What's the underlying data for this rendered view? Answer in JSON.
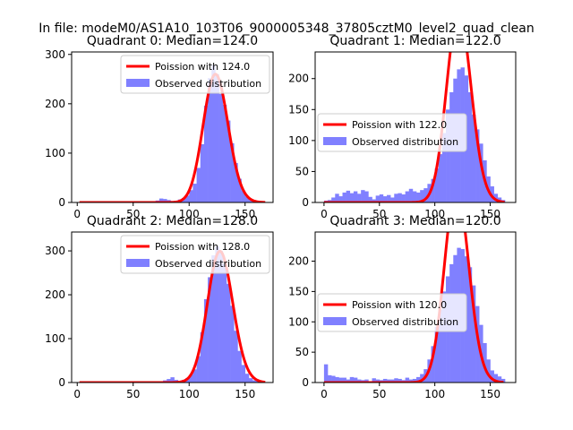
{
  "figure": {
    "title": "In file: modeM0/AS1A10_103T06_9000005348_37805cztM0_level2_quad_clean"
  },
  "colors": {
    "fit_line": "#ff0000",
    "hist_bar": "#8080ff",
    "axis": "#000000",
    "background": "#ffffff"
  },
  "chart_data": [
    {
      "type": "bar",
      "title": "Quadrant 0: Median=124.0",
      "xlim": [
        -5,
        175
      ],
      "ylim": [
        0,
        305
      ],
      "xticks": [
        "0",
        "50",
        "100",
        "150"
      ],
      "xtick_values": [
        0,
        50,
        100,
        150
      ],
      "yticks": [
        "0",
        "100",
        "200",
        "300"
      ],
      "ytick_values": [
        0,
        100,
        200,
        300
      ],
      "legend": {
        "placement": "upper-right",
        "entries": [
          "Poission with 124.0",
          "Observed distribution"
        ]
      },
      "bin_width": 3.33,
      "bins_x": [
        70,
        73.33,
        76.67,
        80,
        83.33,
        86.67,
        90,
        93.33,
        96.67,
        100,
        103.33,
        106.67,
        110,
        113.33,
        116.67,
        120,
        123.33,
        126.67,
        130,
        133.33,
        136.67,
        140,
        143.33,
        146.67,
        150,
        153.33,
        156.67,
        160,
        163.33
      ],
      "bins_count": [
        4,
        8,
        7,
        5,
        3,
        3,
        6,
        9,
        14,
        25,
        38,
        70,
        118,
        196,
        252,
        278,
        260,
        220,
        198,
        166,
        120,
        80,
        48,
        24,
        12,
        6,
        4,
        3,
        2
      ],
      "fit_mu": 124.0,
      "fit_range": [
        2,
        168
      ]
    },
    {
      "type": "bar",
      "title": "Quadrant 1: Median=122.0",
      "xlim": [
        -8,
        173
      ],
      "ylim": [
        0,
        243
      ],
      "xticks": [
        "0",
        "50",
        "100",
        "150"
      ],
      "xtick_values": [
        0,
        50,
        100,
        150
      ],
      "yticks": [
        "0",
        "50",
        "100",
        "150",
        "200"
      ],
      "ytick_values": [
        0,
        50,
        100,
        150,
        200
      ],
      "legend": {
        "placement": "center-left",
        "entries": [
          "Poission with 122.0",
          "Observed distribution"
        ]
      },
      "bin_width": 3.33,
      "bins_x": [
        0,
        3.33,
        6.67,
        10,
        13.33,
        16.67,
        20,
        23.33,
        26.67,
        30,
        33.33,
        36.67,
        40,
        43.33,
        46.67,
        50,
        53.33,
        56.67,
        60,
        63.33,
        66.67,
        70,
        73.33,
        76.67,
        80,
        83.33,
        86.67,
        90,
        93.33,
        96.67,
        100,
        103.33,
        106.67,
        110,
        113.33,
        116.67,
        120,
        123.33,
        126.67,
        130,
        133.33,
        136.67,
        140,
        143.33,
        146.67,
        150,
        153.33,
        156.67,
        160
      ],
      "bins_count": [
        3,
        4,
        8,
        14,
        10,
        16,
        19,
        15,
        18,
        14,
        20,
        18,
        9,
        5,
        11,
        13,
        10,
        12,
        8,
        14,
        15,
        13,
        18,
        22,
        18,
        16,
        20,
        23,
        30,
        38,
        55,
        78,
        112,
        150,
        178,
        200,
        215,
        218,
        205,
        178,
        142,
        118,
        95,
        68,
        42,
        26,
        14,
        8,
        4
      ],
      "fit_mu": 122.0,
      "fit_range": [
        0,
        163
      ]
    },
    {
      "type": "bar",
      "title": "Quadrant 2: Median=128.0",
      "xlim": [
        -5,
        175
      ],
      "ylim": [
        0,
        343
      ],
      "xticks": [
        "0",
        "50",
        "100",
        "150"
      ],
      "xtick_values": [
        0,
        50,
        100,
        150
      ],
      "yticks": [
        "0",
        "100",
        "200",
        "300"
      ],
      "ytick_values": [
        0,
        100,
        200,
        300
      ],
      "legend": {
        "placement": "upper-right",
        "entries": [
          "Poission with 128.0",
          "Observed distribution"
        ]
      },
      "bin_width": 3.33,
      "bins_x": [
        70,
        73.33,
        76.67,
        80,
        83.33,
        86.67,
        90,
        93.33,
        96.67,
        100,
        103.33,
        106.67,
        110,
        113.33,
        116.67,
        120,
        123.33,
        126.67,
        130,
        133.33,
        136.67,
        140,
        143.33,
        146.67,
        150,
        153.33,
        156.67,
        160,
        163.33
      ],
      "bins_count": [
        2,
        3,
        5,
        8,
        12,
        6,
        4,
        6,
        10,
        18,
        30,
        60,
        115,
        190,
        240,
        290,
        310,
        300,
        270,
        225,
        175,
        118,
        72,
        40,
        20,
        10,
        5,
        3,
        2
      ],
      "fit_mu": 128.0,
      "fit_range": [
        2,
        168
      ]
    },
    {
      "type": "bar",
      "title": "Quadrant 3: Median=120.0",
      "xlim": [
        -8,
        173
      ],
      "ylim": [
        0,
        248
      ],
      "xticks": [
        "0",
        "50",
        "100",
        "150"
      ],
      "xtick_values": [
        0,
        50,
        100,
        150
      ],
      "yticks": [
        "0",
        "50",
        "100",
        "150",
        "200"
      ],
      "ytick_values": [
        0,
        50,
        100,
        150,
        200
      ],
      "legend": {
        "placement": "center-left",
        "entries": [
          "Poission with 120.0",
          "Observed distribution"
        ]
      },
      "bin_width": 3.33,
      "bins_x": [
        0,
        3.33,
        6.67,
        10,
        13.33,
        16.67,
        20,
        23.33,
        26.67,
        30,
        33.33,
        36.67,
        40,
        43.33,
        46.67,
        50,
        53.33,
        56.67,
        60,
        63.33,
        66.67,
        70,
        73.33,
        76.67,
        80,
        83.33,
        86.67,
        90,
        93.33,
        96.67,
        100,
        103.33,
        106.67,
        110,
        113.33,
        116.67,
        120,
        123.33,
        126.67,
        130,
        133.33,
        136.67,
        140,
        143.33,
        146.67,
        150,
        153.33,
        156.67,
        160
      ],
      "bins_count": [
        30,
        12,
        11,
        9,
        8,
        8,
        5,
        9,
        8,
        5,
        4,
        5,
        2,
        7,
        5,
        4,
        6,
        5,
        5,
        7,
        6,
        4,
        8,
        5,
        6,
        9,
        14,
        22,
        38,
        60,
        92,
        120,
        150,
        175,
        195,
        210,
        222,
        220,
        208,
        190,
        160,
        126,
        95,
        65,
        38,
        20,
        14,
        10,
        6
      ],
      "fit_mu": 120.0,
      "fit_range": [
        0,
        162
      ]
    }
  ]
}
